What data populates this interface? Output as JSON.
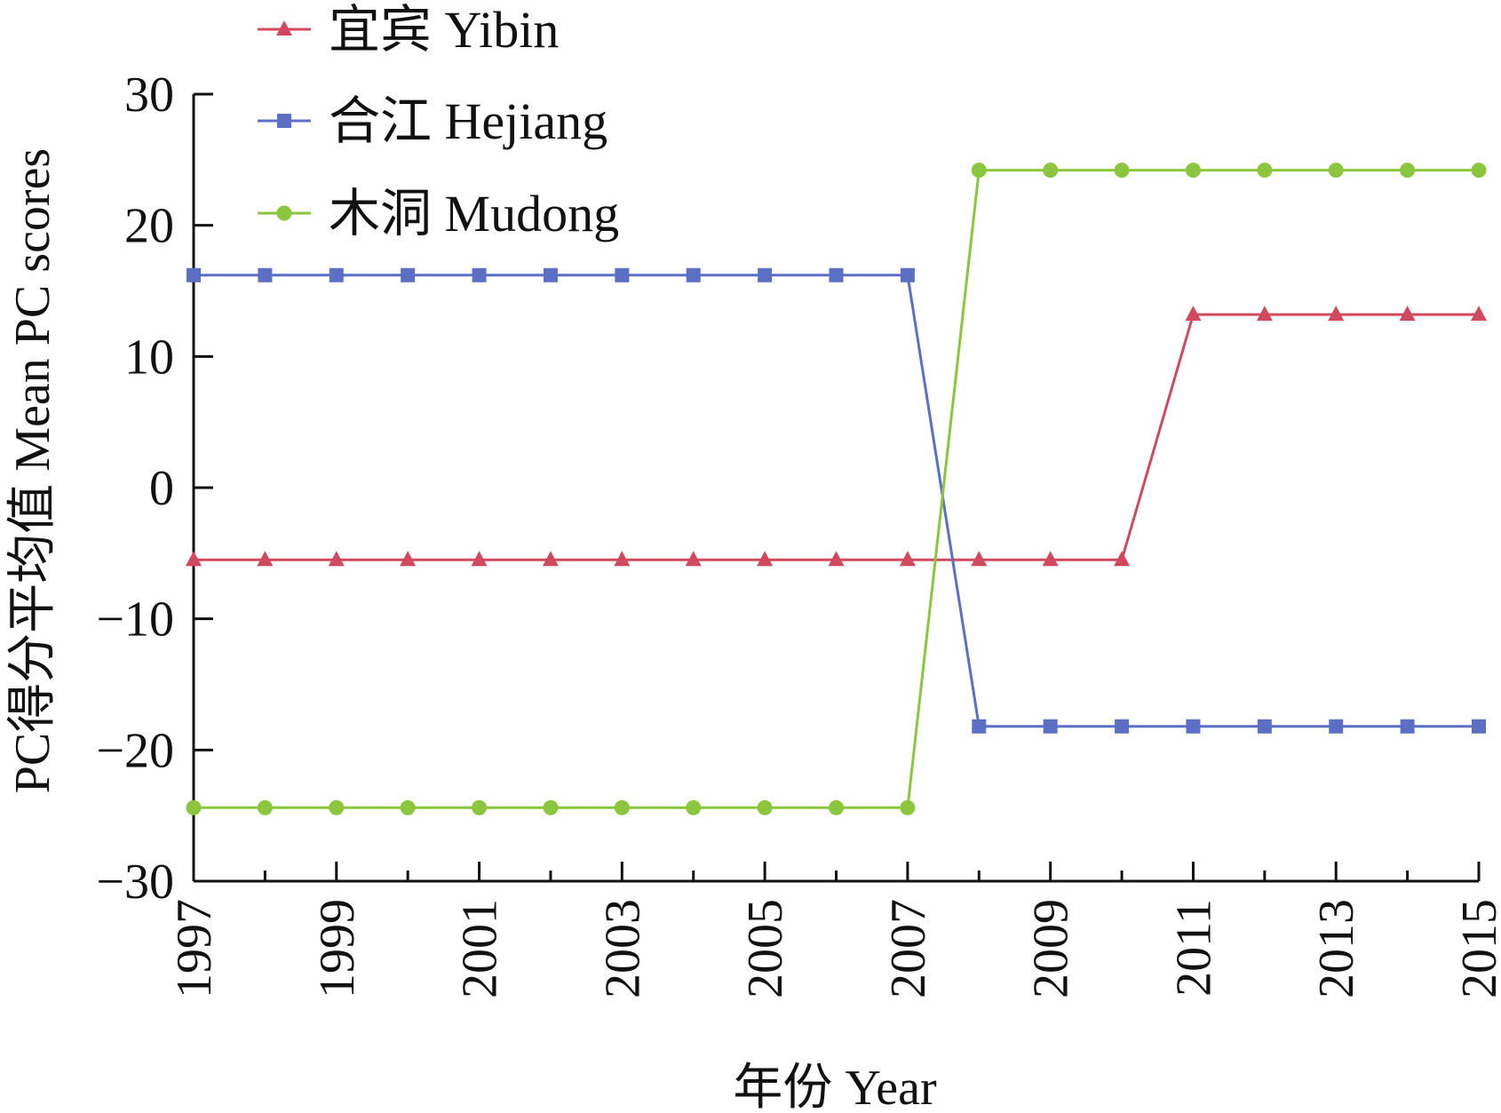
{
  "chart_data": {
    "type": "line",
    "title": "",
    "xlabel": "年份 Year",
    "ylabel": "PC得分平均值 Mean PC scores",
    "xlim": [
      1997,
      2015
    ],
    "ylim": [
      -30,
      30
    ],
    "x_tick_labels": [
      "1997",
      "1999",
      "2001",
      "2003",
      "2005",
      "2007",
      "2009",
      "2011",
      "2013",
      "2015"
    ],
    "y_tick_labels": [
      "30",
      "20",
      "10",
      "0",
      "−10",
      "−20",
      "−30"
    ],
    "legend_position": "top-left",
    "x": [
      1997,
      1998,
      1999,
      2000,
      2001,
      2002,
      2003,
      2004,
      2005,
      2006,
      2007,
      2008,
      2009,
      2010,
      2011,
      2012,
      2013,
      2014,
      2015
    ],
    "series": [
      {
        "name": "宜宾 Yibin",
        "color": "#d0495f",
        "marker": "triangle",
        "values": [
          -5.5,
          -5.5,
          -5.5,
          -5.5,
          -5.5,
          -5.5,
          -5.5,
          -5.5,
          -5.5,
          -5.5,
          -5.5,
          -5.5,
          -5.5,
          -5.5,
          13.2,
          13.2,
          13.2,
          13.2,
          13.2
        ]
      },
      {
        "name": "合江 Hejiang",
        "color": "#5b6fc4",
        "marker": "square",
        "values": [
          16.2,
          16.2,
          16.2,
          16.2,
          16.2,
          16.2,
          16.2,
          16.2,
          16.2,
          16.2,
          16.2,
          -18.2,
          -18.2,
          -18.2,
          -18.2,
          -18.2,
          -18.2,
          -18.2,
          -18.2
        ]
      },
      {
        "name": "木洞 Mudong",
        "color": "#8cc63f",
        "marker": "circle",
        "values": [
          -24.4,
          -24.4,
          -24.4,
          -24.4,
          -24.4,
          -24.4,
          -24.4,
          -24.4,
          -24.4,
          -24.4,
          -24.4,
          24.2,
          24.2,
          24.2,
          24.2,
          24.2,
          24.2,
          24.2,
          24.2
        ]
      }
    ]
  }
}
